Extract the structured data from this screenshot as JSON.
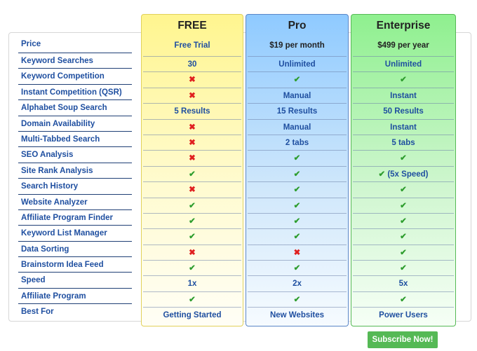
{
  "labels": [
    "Price",
    "Keyword Searches",
    "Keyword Competition",
    "Instant Competition (QSR)",
    "Alphabet Soup Search",
    "Domain Availability",
    "Multi-Tabbed Search",
    "SEO Analysis",
    "Site Rank Analysis",
    "Search History",
    "Website Analyzer",
    "Affiliate Program Finder",
    "Keyword List Manager",
    "Data Sorting",
    "Brainstorm Idea Feed",
    "Speed",
    "Affiliate Program",
    "Best For"
  ],
  "icons": {
    "yes": "checkmark-icon",
    "no": "cross-icon",
    "yes_glyph": "✔",
    "no_glyph": "✖"
  },
  "plans": [
    {
      "key": "free",
      "name": "FREE",
      "price": "Free Trial",
      "cells": [
        "30",
        "no",
        "no",
        "5 Results",
        "no",
        "no",
        "no",
        "yes",
        "no",
        "yes",
        "yes",
        "yes",
        "no",
        "yes",
        "1x",
        "yes",
        "Getting Started"
      ]
    },
    {
      "key": "pro",
      "name": "Pro",
      "price": "$19 per month",
      "cells": [
        "Unlimited",
        "yes",
        "Manual",
        "15 Results",
        "Manual",
        "2 tabs",
        "yes",
        "yes",
        "yes",
        "yes",
        "yes",
        "yes",
        "no",
        "yes",
        "2x",
        "yes",
        "New Websites"
      ]
    },
    {
      "key": "enterprise",
      "name": "Enterprise",
      "price": "$499 per year",
      "cells": [
        "Unlimited",
        "yes",
        "Instant",
        "50 Results",
        "Instant",
        "5 tabs",
        "yes",
        "yes (5x Speed)",
        "yes",
        "yes",
        "yes",
        "yes",
        "yes",
        "yes",
        "5x",
        "yes",
        "Power Users"
      ]
    }
  ],
  "colors": {
    "free": "#fff58f",
    "pro": "#8fcaff",
    "enterprise": "#8ff08f",
    "label": "#1f4fa0",
    "check": "#2e9d2e",
    "cross": "#e02020",
    "button": "#55b955"
  },
  "subscribe_label": "Subscribe Now!"
}
